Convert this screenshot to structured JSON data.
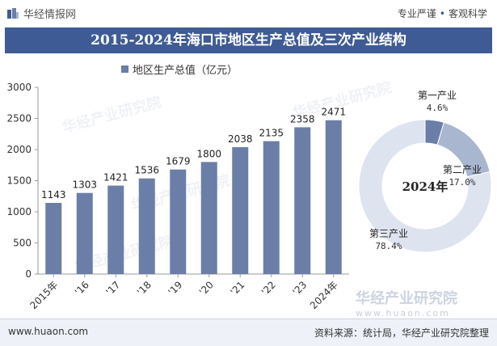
{
  "header": {
    "brand": "华经情报网",
    "slogan_left": "专业严谨",
    "slogan_sep": "•",
    "slogan_right": "客观科学"
  },
  "chart_data": [
    {
      "type": "bar",
      "title": "2015-2024年海口市地区生产总值及三次产业结构",
      "legend": [
        "地区生产总值（亿元）"
      ],
      "categories": [
        "2015年",
        "'16",
        "'17",
        "'18",
        "'19",
        "'20",
        "'21",
        "'22",
        "'23",
        "2024年"
      ],
      "series": [
        {
          "name": "地区生产总值（亿元）",
          "values": [
            1143,
            1303,
            1421,
            1536,
            1679,
            1800,
            2038,
            2135,
            2358,
            2471
          ]
        }
      ],
      "ylim": [
        0,
        3000
      ],
      "yticks": [
        0,
        500,
        1000,
        1500,
        2000,
        2500,
        3000
      ],
      "grid": false,
      "color": "#6a7ea8"
    },
    {
      "type": "pie",
      "center_label": "2024年",
      "slices": [
        {
          "name": "第一产业",
          "value": 4.6,
          "label": "4.6%",
          "color": "#6a7ea8"
        },
        {
          "name": "第二产业",
          "value": 17.0,
          "label": "17.0%",
          "color": "#a9b6d0"
        },
        {
          "name": "第三产业",
          "value": 78.4,
          "label": "78.4%",
          "color": "#dde3ef"
        }
      ]
    }
  ],
  "watermarks": [
    "华经产业研究院",
    "www.huaon.com"
  ],
  "footer": {
    "site": "www.huaon.com",
    "source": "资料来源：统计局，华经产业研究院整理"
  }
}
